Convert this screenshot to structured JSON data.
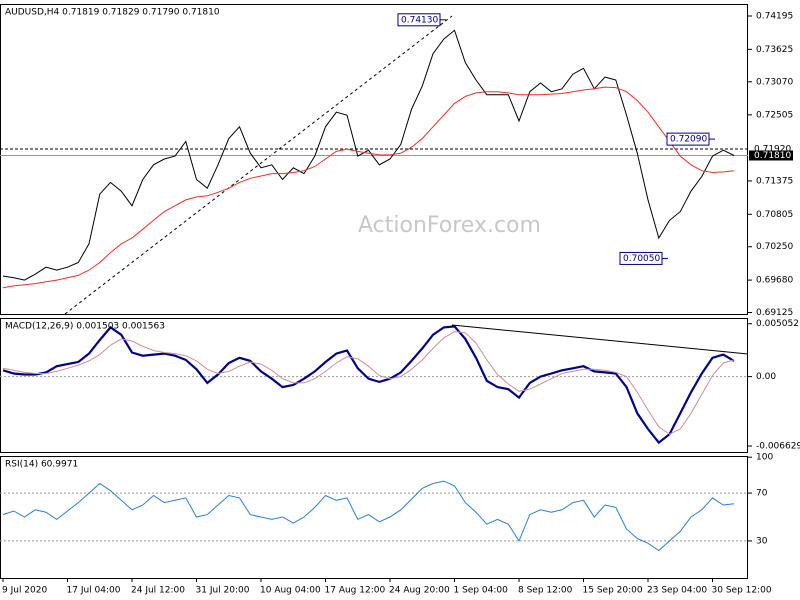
{
  "chart_data": [
    {
      "type": "line",
      "title": "AUDUSD,H4  0.71819 0.71829 0.71790 0.71810",
      "watermark": "ActionForex.com",
      "series": [
        {
          "color": "#000000",
          "values": [
            0.6975,
            0.6972,
            0.6968,
            0.6978,
            0.699,
            0.6985,
            0.699,
            0.6998,
            0.703,
            0.7115,
            0.7135,
            0.712,
            0.7095,
            0.714,
            0.7165,
            0.7175,
            0.718,
            0.7205,
            0.714,
            0.7125,
            0.7165,
            0.721,
            0.723,
            0.7185,
            0.716,
            0.7165,
            0.714,
            0.716,
            0.715,
            0.718,
            0.723,
            0.7255,
            0.725,
            0.718,
            0.719,
            0.7165,
            0.7175,
            0.72,
            0.726,
            0.73,
            0.7355,
            0.738,
            0.7395,
            0.734,
            0.731,
            0.7285,
            0.7285,
            0.7285,
            0.724,
            0.729,
            0.7305,
            0.729,
            0.7295,
            0.732,
            0.733,
            0.7295,
            0.7315,
            0.731,
            0.725,
            0.7185,
            0.7105,
            0.704,
            0.707,
            0.7085,
            0.712,
            0.7145,
            0.718,
            0.719,
            0.7181
          ]
        },
        {
          "color": "#e8312f",
          "values": [
            0.6955,
            0.6958,
            0.696,
            0.6962,
            0.6965,
            0.6968,
            0.6972,
            0.6976,
            0.6985,
            0.6998,
            0.7015,
            0.703,
            0.704,
            0.7055,
            0.707,
            0.7085,
            0.7095,
            0.7105,
            0.711,
            0.7112,
            0.7118,
            0.7125,
            0.7135,
            0.7142,
            0.7146,
            0.715,
            0.715,
            0.7152,
            0.7155,
            0.7162,
            0.7175,
            0.7188,
            0.7192,
            0.7188,
            0.7185,
            0.7182,
            0.7182,
            0.7185,
            0.7195,
            0.721,
            0.723,
            0.725,
            0.727,
            0.7282,
            0.7288,
            0.729,
            0.729,
            0.7288,
            0.7285,
            0.7285,
            0.7285,
            0.7286,
            0.7287,
            0.729,
            0.7293,
            0.7295,
            0.7298,
            0.7297,
            0.729,
            0.7275,
            0.7255,
            0.723,
            0.7205,
            0.718,
            0.7165,
            0.7155,
            0.7152,
            0.7153,
            0.7155
          ]
        }
      ],
      "ylim": [
        0.691,
        0.744
      ],
      "yticks": [
        0.74195,
        0.73625,
        {
          "value": 0.7307,
          "label": "0.73070"
        },
        0.72505,
        0.71375,
        0.70805,
        {
          "value": 0.7025,
          "label": "0.70250"
        },
        {
          "value": 0.6968,
          "label": "0.69680"
        },
        0.69125
      ],
      "price_lines": [
        {
          "value": 0.7192,
          "label": "0.71920"
        },
        {
          "value": 0.7181,
          "label": "0.71810"
        }
      ],
      "annotations": [
        {
          "value": 0.7413,
          "label": "0.74130"
        },
        {
          "value": 0.7209,
          "label": "0.72090"
        },
        {
          "value": 0.7005,
          "label": "0.70050"
        }
      ]
    },
    {
      "type": "line",
      "title": "MACD(12,26,9) 0.001503 0.001563",
      "series": [
        {
          "color": "#00008b",
          "values": [
            0.0006,
            0.0003,
            0.0002,
            0.0002,
            0.0004,
            0.001,
            0.0012,
            0.0014,
            0.0022,
            0.0035,
            0.0047,
            0.004,
            0.0023,
            0.002,
            0.0021,
            0.0022,
            0.002,
            0.0016,
            0.0007,
            -0.0006,
            0.0002,
            0.0013,
            0.0018,
            0.0015,
            0.0005,
            -0.0002,
            -0.001,
            -0.0008,
            -0.0002,
            0.0005,
            0.0014,
            0.0022,
            0.0025,
            0.0008,
            -0.0002,
            -0.0005,
            -0.0002,
            0.0004,
            0.0015,
            0.0027,
            0.004,
            0.0047,
            0.0048,
            0.0036,
            0.0018,
            -0.0004,
            -0.001,
            -0.0012,
            -0.002,
            -0.0006,
            0,
            0.0003,
            0.0006,
            0.0008,
            0.001,
            0.0005,
            0.0004,
            0.0003,
            -0.001,
            -0.0035,
            -0.005,
            -0.0063,
            -0.0055,
            -0.0035,
            -0.0015,
            0.0003,
            0.0018,
            0.0021,
            0.0015
          ]
        },
        {
          "color": "#d09090",
          "values": [
            0.0008,
            0.0006,
            0.0004,
            0.0003,
            0.0003,
            0.0005,
            0.0008,
            0.0011,
            0.0015,
            0.0021,
            0.003,
            0.0036,
            0.0034,
            0.0029,
            0.0025,
            0.0023,
            0.0022,
            0.002,
            0.0015,
            0.0007,
            0.0003,
            0.0005,
            0.001,
            0.0014,
            0.0012,
            0.0006,
            -0.0002,
            -0.0006,
            -0.0006,
            -0.0002,
            0.0005,
            0.0013,
            0.0019,
            0.0017,
            0.001,
            0.0001,
            -0.0002,
            0,
            0.0007,
            0.0016,
            0.0027,
            0.0037,
            0.0043,
            0.0042,
            0.0032,
            0.0016,
            0.0002,
            -0.0007,
            -0.0014,
            -0.0012,
            -0.0007,
            -0.0002,
            0.0003,
            0.0005,
            0.0007,
            0.0007,
            0.0006,
            0.0004,
            0,
            -0.0015,
            -0.0032,
            -0.0048,
            -0.0055,
            -0.005,
            -0.0035,
            -0.0017,
            0.0001,
            0.0013,
            0.0016
          ]
        }
      ],
      "ylim": [
        -0.0072,
        0.0056
      ],
      "yticks": [
        0.005052,
        {
          "value": 0,
          "label": "0.00"
        },
        -0.006629
      ],
      "grid": true
    },
    {
      "type": "line",
      "title": "RSI(14) 60.9971",
      "series": [
        {
          "color": "#2a7fd4",
          "values": [
            52,
            55,
            50,
            56,
            54,
            48,
            55,
            62,
            70,
            78,
            72,
            64,
            56,
            60,
            68,
            62,
            64,
            66,
            50,
            52,
            60,
            68,
            66,
            52,
            50,
            48,
            50,
            45,
            50,
            58,
            68,
            64,
            66,
            48,
            52,
            46,
            50,
            56,
            65,
            74,
            78,
            80,
            76,
            62,
            54,
            44,
            48,
            44,
            30,
            52,
            56,
            54,
            56,
            62,
            64,
            50,
            60,
            58,
            40,
            32,
            28,
            22,
            30,
            38,
            50,
            56,
            66,
            60,
            61
          ]
        }
      ],
      "ylim": [
        -1,
        101
      ],
      "yticks": [
        100,
        70,
        30
      ],
      "grid": true,
      "categories": [
        "9 Jul 2020",
        null,
        null,
        null,
        null,
        null,
        "17 Jul 04:00",
        null,
        null,
        null,
        null,
        null,
        "24 Jul 12:00",
        null,
        null,
        null,
        null,
        null,
        "31 Jul 20:00",
        null,
        null,
        null,
        null,
        null,
        "10 Aug 04:00",
        null,
        null,
        null,
        null,
        null,
        "17 Aug 12:00",
        null,
        null,
        null,
        null,
        null,
        "24 Aug 20:00",
        null,
        null,
        null,
        null,
        null,
        "1 Sep 04:00",
        null,
        null,
        null,
        null,
        null,
        "8 Sep 12:00",
        null,
        null,
        null,
        null,
        null,
        "15 Sep 20:00",
        null,
        null,
        null,
        null,
        null,
        "23 Sep 04:00",
        null,
        null,
        null,
        null,
        null,
        "30 Sep 12:00",
        null,
        null
      ]
    }
  ]
}
